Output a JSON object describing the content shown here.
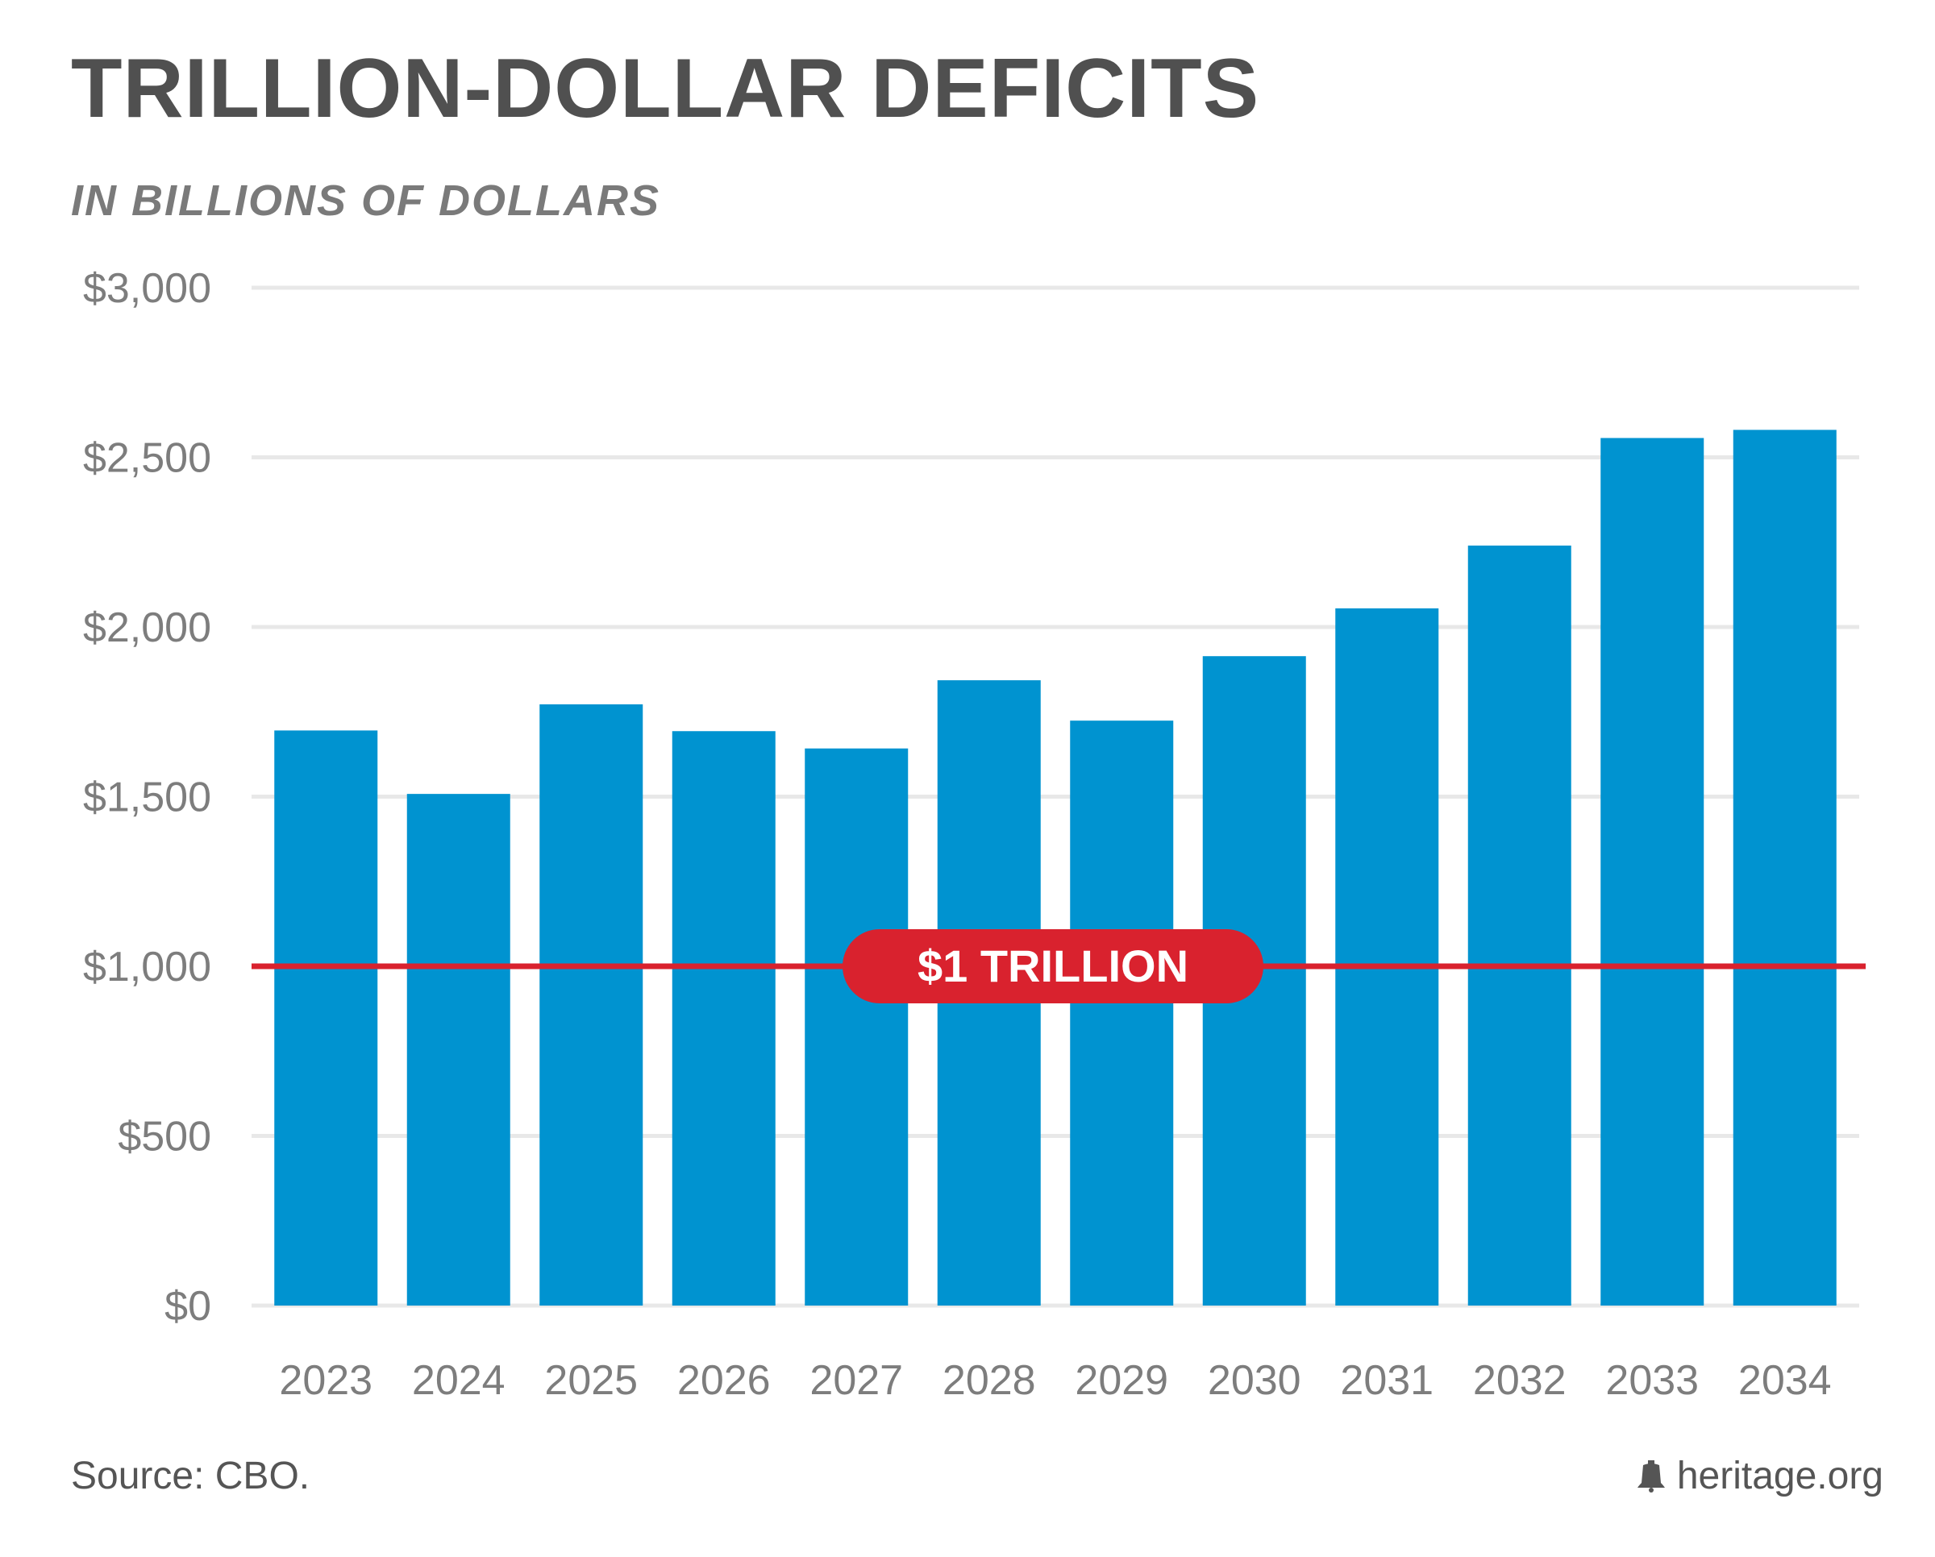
{
  "chart_data": {
    "type": "bar",
    "title": "TRILLION-DOLLAR DEFICITS",
    "subtitle": "IN BILLIONS OF DOLLARS",
    "categories": [
      "2023",
      "2024",
      "2025",
      "2026",
      "2027",
      "2028",
      "2029",
      "2030",
      "2031",
      "2032",
      "2033",
      "2034"
    ],
    "values": [
      1695,
      1508,
      1772,
      1693,
      1642,
      1843,
      1724,
      1914,
      2055,
      2240,
      2557,
      2581
    ],
    "ylim": [
      0,
      3000
    ],
    "yticks": [
      0,
      500,
      1000,
      1500,
      2000,
      2500,
      3000
    ],
    "ytick_labels": [
      "$0",
      "$500",
      "$1,000",
      "$1,500",
      "$2,000",
      "$2,500",
      "$3,000"
    ],
    "grid": true,
    "bar_color": "#0093d0",
    "reference_line": {
      "value": 1000,
      "label": "$1 TRILLION",
      "color": "#d9222e"
    },
    "source": "Source: CBO.",
    "brand": "heritage.org"
  }
}
